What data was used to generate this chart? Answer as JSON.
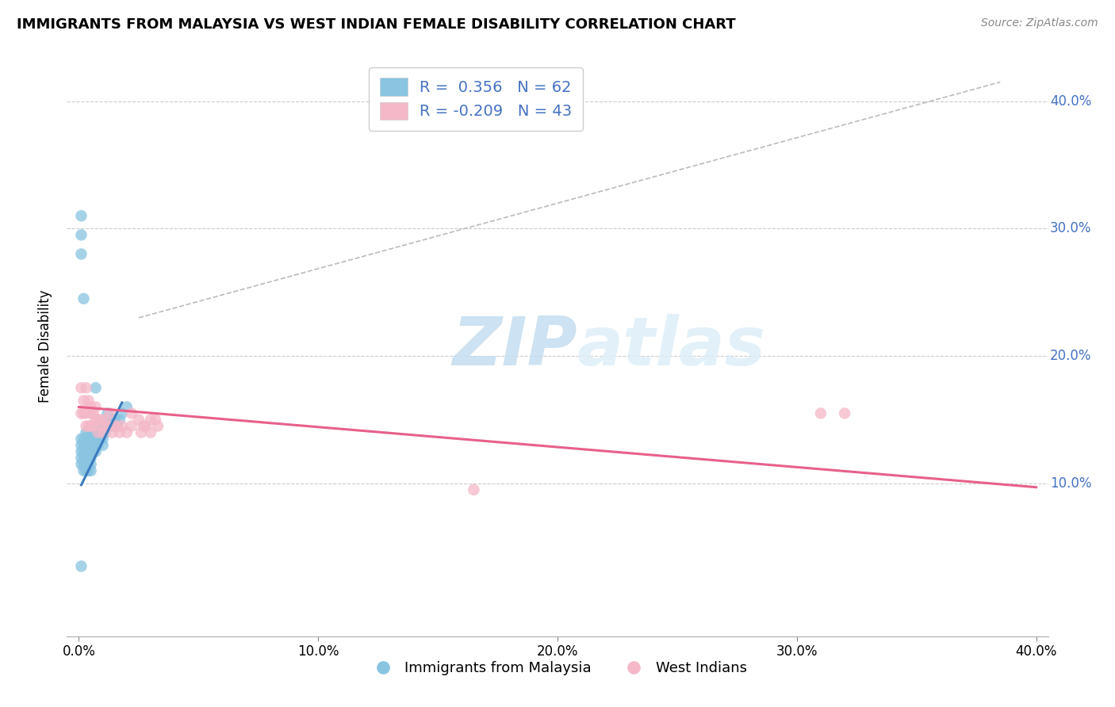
{
  "title": "IMMIGRANTS FROM MALAYSIA VS WEST INDIAN FEMALE DISABILITY CORRELATION CHART",
  "source": "Source: ZipAtlas.com",
  "ylabel": "Female Disability",
  "y_tick_labels": [
    "10.0%",
    "20.0%",
    "30.0%",
    "40.0%"
  ],
  "y_tick_values": [
    0.1,
    0.2,
    0.3,
    0.4
  ],
  "x_tick_labels": [
    "0.0%",
    "10.0%",
    "20.0%",
    "30.0%",
    "40.0%"
  ],
  "x_tick_values": [
    0.0,
    0.1,
    0.2,
    0.3,
    0.4
  ],
  "xlim": [
    -0.005,
    0.405
  ],
  "ylim": [
    -0.02,
    0.435
  ],
  "blue_R": 0.356,
  "blue_N": 62,
  "pink_R": -0.209,
  "pink_N": 43,
  "blue_color": "#89c4e1",
  "pink_color": "#f4b8c8",
  "blue_line_color": "#3a7bbf",
  "pink_line_color": "#e8608a",
  "legend_label_blue": "Immigrants from Malaysia",
  "legend_label_pink": "West Indians",
  "watermark_zip": "ZIP",
  "watermark_atlas": "atlas",
  "blue_points_x": [
    0.001,
    0.001,
    0.001,
    0.001,
    0.001,
    0.002,
    0.002,
    0.002,
    0.002,
    0.002,
    0.002,
    0.003,
    0.003,
    0.003,
    0.003,
    0.003,
    0.003,
    0.003,
    0.004,
    0.004,
    0.004,
    0.004,
    0.004,
    0.004,
    0.004,
    0.005,
    0.005,
    0.005,
    0.005,
    0.005,
    0.006,
    0.006,
    0.006,
    0.006,
    0.007,
    0.007,
    0.007,
    0.007,
    0.008,
    0.008,
    0.008,
    0.009,
    0.009,
    0.01,
    0.01,
    0.01,
    0.011,
    0.011,
    0.012,
    0.012,
    0.013,
    0.014,
    0.015,
    0.016,
    0.017,
    0.018,
    0.02,
    0.001,
    0.001,
    0.001,
    0.002,
    0.001
  ],
  "blue_points_y": [
    0.115,
    0.125,
    0.13,
    0.135,
    0.12,
    0.12,
    0.125,
    0.13,
    0.115,
    0.135,
    0.11,
    0.12,
    0.125,
    0.13,
    0.115,
    0.135,
    0.11,
    0.14,
    0.12,
    0.125,
    0.13,
    0.115,
    0.135,
    0.11,
    0.14,
    0.12,
    0.125,
    0.13,
    0.115,
    0.11,
    0.125,
    0.13,
    0.135,
    0.14,
    0.125,
    0.13,
    0.135,
    0.175,
    0.13,
    0.135,
    0.14,
    0.135,
    0.145,
    0.13,
    0.135,
    0.145,
    0.15,
    0.14,
    0.145,
    0.155,
    0.145,
    0.15,
    0.15,
    0.145,
    0.15,
    0.155,
    0.16,
    0.295,
    0.31,
    0.28,
    0.245,
    0.035
  ],
  "pink_points_x": [
    0.001,
    0.001,
    0.002,
    0.002,
    0.003,
    0.003,
    0.003,
    0.004,
    0.004,
    0.005,
    0.005,
    0.005,
    0.006,
    0.006,
    0.007,
    0.007,
    0.008,
    0.008,
    0.009,
    0.01,
    0.01,
    0.011,
    0.012,
    0.013,
    0.014,
    0.015,
    0.016,
    0.017,
    0.018,
    0.02,
    0.022,
    0.022,
    0.025,
    0.026,
    0.027,
    0.028,
    0.03,
    0.03,
    0.032,
    0.033,
    0.165,
    0.31,
    0.32
  ],
  "pink_points_y": [
    0.175,
    0.155,
    0.165,
    0.155,
    0.175,
    0.155,
    0.145,
    0.165,
    0.145,
    0.16,
    0.155,
    0.145,
    0.155,
    0.145,
    0.16,
    0.15,
    0.15,
    0.14,
    0.15,
    0.145,
    0.14,
    0.15,
    0.145,
    0.155,
    0.14,
    0.145,
    0.145,
    0.14,
    0.145,
    0.14,
    0.155,
    0.145,
    0.15,
    0.14,
    0.145,
    0.145,
    0.15,
    0.14,
    0.15,
    0.145,
    0.095,
    0.155,
    0.155
  ],
  "blue_line_x": [
    0.001,
    0.018
  ],
  "blue_line_y_intercept": 0.095,
  "blue_line_slope": 3.8,
  "pink_line_x": [
    0.0,
    0.4
  ],
  "pink_line_y_start": 0.16,
  "pink_line_y_end": 0.097,
  "ref_line_x": [
    0.025,
    0.385
  ],
  "ref_line_y": [
    0.23,
    0.415
  ]
}
